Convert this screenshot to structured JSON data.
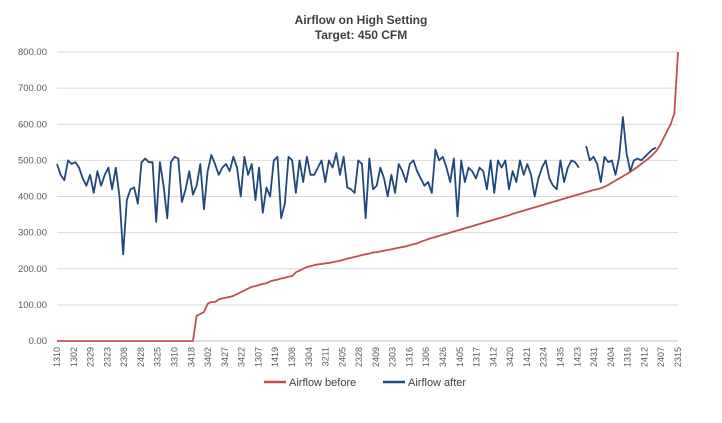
{
  "chart_data": {
    "type": "line",
    "title": "Airflow on High Setting",
    "subtitle": "Target: 450 CFM",
    "xlabel": "",
    "ylabel": "",
    "ylim": [
      0,
      800
    ],
    "yticks": [
      "0.00",
      "100.00",
      "200.00",
      "300.00",
      "400.00",
      "500.00",
      "600.00",
      "700.00",
      "800.00"
    ],
    "grid": true,
    "legend_position": "bottom",
    "x_tick_labels": [
      "1310",
      "1302",
      "2329",
      "2323",
      "2308",
      "2428",
      "3325",
      "3310",
      "3418",
      "3402",
      "3427",
      "3422",
      "1307",
      "1419",
      "1308",
      "3304",
      "3211",
      "2405",
      "2328",
      "2409",
      "2303",
      "1316",
      "1306",
      "3426",
      "1405",
      "1317",
      "3412",
      "3420",
      "1421",
      "2324",
      "1435",
      "1423",
      "2431",
      "2404",
      "1316",
      "2412",
      "2407",
      "2315"
    ],
    "series": [
      {
        "name": "Airflow before",
        "color": "#c0504d",
        "values": [
          0,
          0,
          0,
          0,
          0,
          0,
          0,
          0,
          0,
          0,
          0,
          0,
          0,
          0,
          0,
          0,
          0,
          0,
          0,
          0,
          0,
          0,
          0,
          0,
          0,
          0,
          0,
          0,
          0,
          0,
          0,
          0,
          0,
          0,
          0,
          0,
          0,
          0,
          70,
          75,
          80,
          103,
          108,
          108,
          115,
          118,
          120,
          122,
          125,
          130,
          135,
          140,
          145,
          150,
          152,
          155,
          158,
          160,
          165,
          168,
          170,
          173,
          175,
          178,
          180,
          190,
          195,
          200,
          205,
          207,
          210,
          212,
          213,
          215,
          216,
          218,
          220,
          222,
          225,
          228,
          230,
          233,
          235,
          238,
          240,
          242,
          245,
          246,
          248,
          250,
          252,
          254,
          256,
          258,
          260,
          262,
          265,
          268,
          270,
          275,
          278,
          282,
          285,
          288,
          291,
          294,
          297,
          300,
          303,
          306,
          309,
          312,
          315,
          318,
          321,
          324,
          327,
          330,
          333,
          336,
          339,
          342,
          345,
          348,
          352,
          355,
          358,
          361,
          364,
          367,
          370,
          373,
          376,
          379,
          382,
          385,
          388,
          391,
          394,
          397,
          400,
          403,
          406,
          409,
          412,
          415,
          418,
          420,
          423,
          427,
          432,
          438,
          444,
          450,
          456,
          462,
          468,
          475,
          482,
          490,
          498,
          505,
          515,
          525,
          540,
          560,
          580,
          600,
          630,
          800
        ]
      },
      {
        "name": "Airflow after",
        "color": "#1f497d",
        "values": [
          490,
          460,
          445,
          500,
          490,
          495,
          480,
          450,
          430,
          460,
          410,
          470,
          430,
          460,
          480,
          420,
          480,
          400,
          240,
          390,
          420,
          425,
          380,
          495,
          505,
          495,
          495,
          330,
          495,
          430,
          340,
          495,
          510,
          505,
          385,
          420,
          470,
          405,
          430,
          490,
          365,
          470,
          515,
          490,
          460,
          480,
          490,
          470,
          510,
          480,
          400,
          510,
          460,
          490,
          390,
          480,
          355,
          425,
          400,
          500,
          510,
          340,
          380,
          510,
          500,
          410,
          500,
          440,
          510,
          460,
          460,
          480,
          500,
          440,
          500,
          480,
          520,
          460,
          510,
          425,
          420,
          410,
          500,
          490,
          340,
          505,
          420,
          430,
          480,
          450,
          400,
          460,
          410,
          490,
          470,
          440,
          490,
          500,
          470,
          450,
          430,
          440,
          410,
          530,
          500,
          510,
          480,
          440,
          505,
          345,
          500,
          440,
          480,
          470,
          450,
          480,
          470,
          420,
          500,
          410,
          500,
          480,
          500,
          420,
          470,
          440,
          500,
          460,
          490,
          460,
          400,
          450,
          480,
          500,
          450,
          430,
          420,
          500,
          440,
          480,
          500,
          495,
          480,
          null,
          540,
          500,
          510,
          490,
          440,
          510,
          495,
          500,
          460,
          510,
          620,
          520,
          470,
          500,
          505,
          500,
          510,
          520,
          530,
          535
        ]
      }
    ]
  }
}
